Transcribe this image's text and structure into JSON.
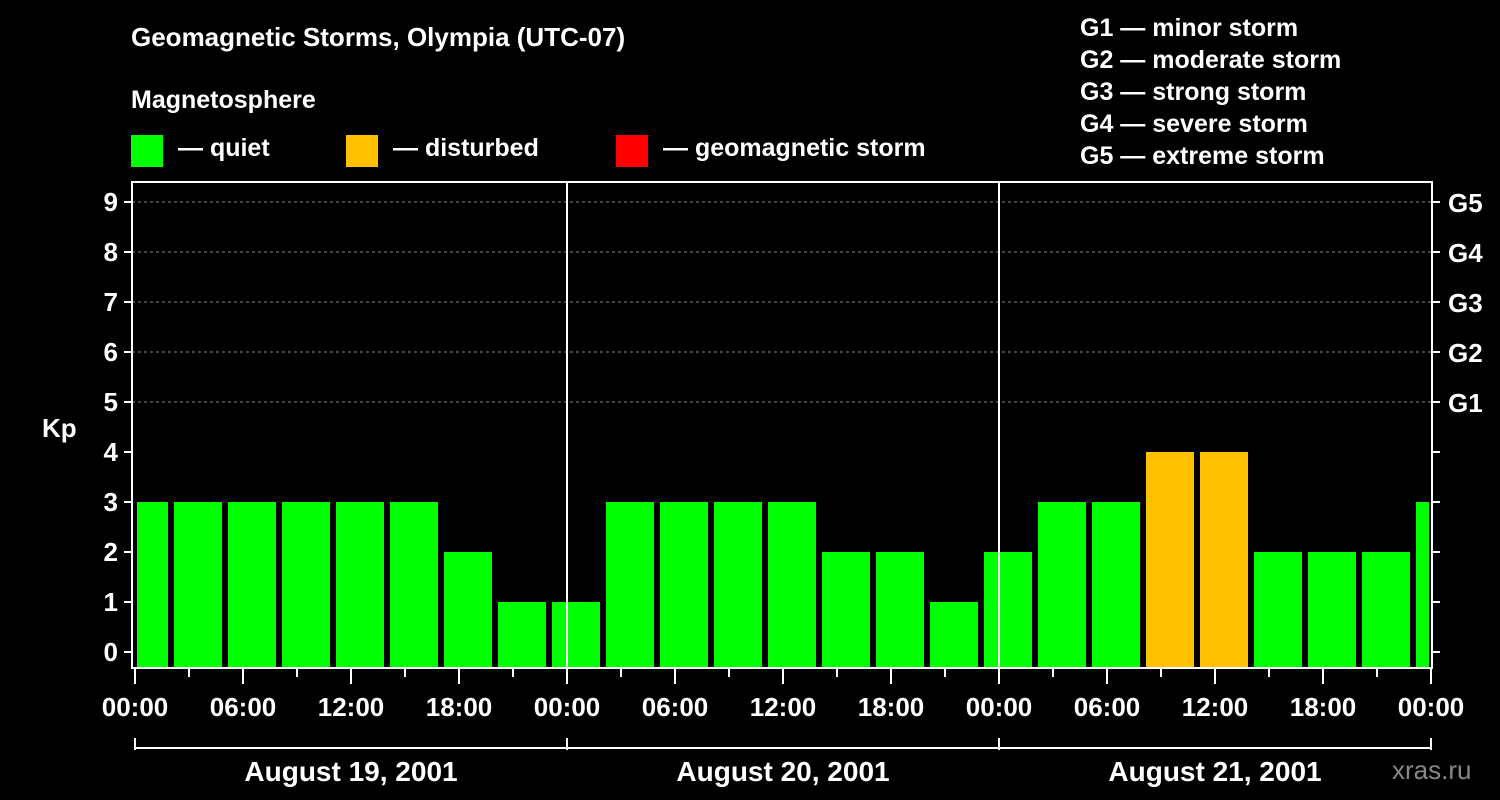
{
  "chart_data": {
    "type": "bar",
    "title": "Geomagnetic Storms, Olympia (UTC-07)",
    "legend_title": "Magnetosphere",
    "legend": [
      {
        "label": "— quiet",
        "color": "#00ff00"
      },
      {
        "label": "— disturbed",
        "color": "#ffc000"
      },
      {
        "label": "— geomagnetic storm",
        "color": "#ff0000"
      }
    ],
    "scale_legend": [
      "G1 — minor storm",
      "G2 — moderate storm",
      "G3 — strong storm",
      "G4 — severe storm",
      "G5 — extreme storm"
    ],
    "ylabel": "Kp",
    "ylim": [
      0,
      9
    ],
    "yticks": [
      "0",
      "1",
      "2",
      "3",
      "4",
      "5",
      "6",
      "7",
      "8",
      "9"
    ],
    "right_ticks": [
      {
        "kp": 5,
        "label": "G1"
      },
      {
        "kp": 6,
        "label": "G2"
      },
      {
        "kp": 7,
        "label": "G3"
      },
      {
        "kp": 8,
        "label": "G4"
      },
      {
        "kp": 9,
        "label": "G5"
      }
    ],
    "xticks": [
      "00:00",
      "06:00",
      "12:00",
      "18:00",
      "00:00",
      "06:00",
      "12:00",
      "18:00",
      "00:00",
      "06:00",
      "12:00",
      "18:00",
      "00:00"
    ],
    "days": [
      "August 19, 2001",
      "August 20, 2001",
      "August 21, 2001"
    ],
    "bin_hours": 3,
    "first_bin_start_hour": -1,
    "values": [
      3,
      3,
      3,
      3,
      3,
      3,
      2,
      1,
      1,
      3,
      3,
      3,
      3,
      2,
      2,
      1,
      2,
      3,
      3,
      4,
      4,
      2,
      2,
      2,
      3
    ],
    "watermark": "xras.ru"
  }
}
